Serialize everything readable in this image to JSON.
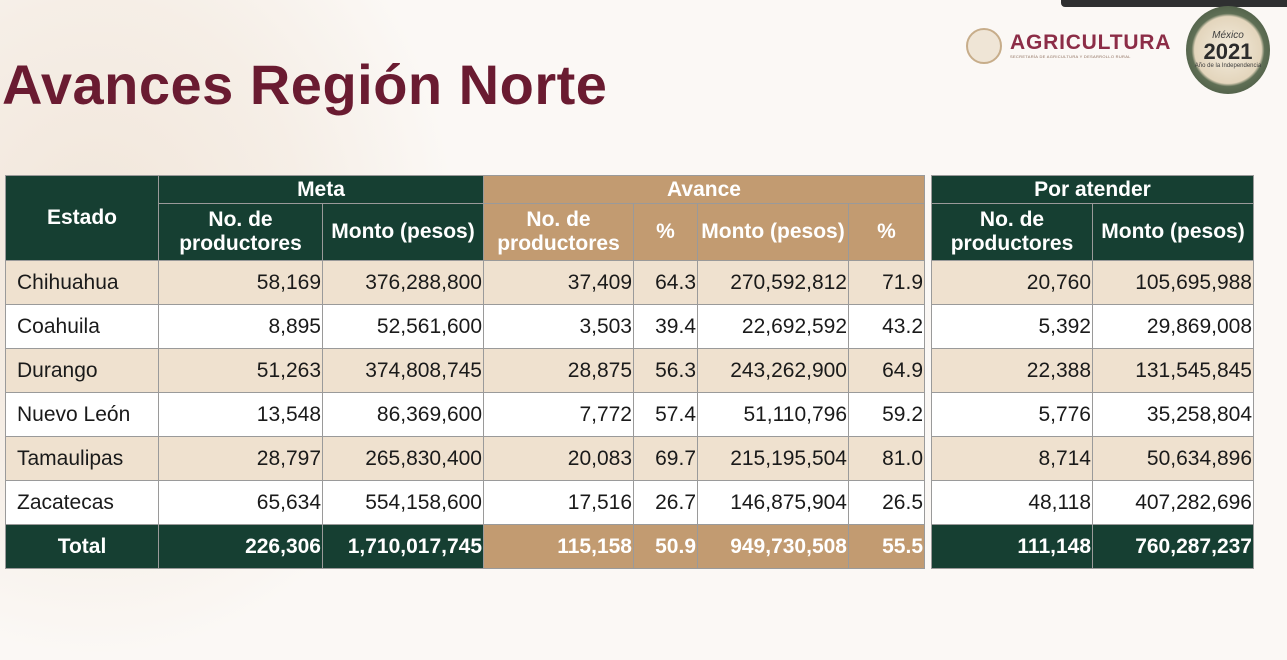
{
  "title": "Avances Región Norte",
  "logo": {
    "name": "AGRICULTURA",
    "subtitle": "SECRETARÍA DE AGRICULTURA Y DESARROLLO RURAL"
  },
  "badge": {
    "country": "México",
    "year": "2021",
    "subtitle": "Año de la Independencia"
  },
  "table": {
    "estado_header": "Estado",
    "groups": {
      "meta": "Meta",
      "avance": "Avance",
      "por_atender": "Por atender"
    },
    "subheaders": {
      "productores": "No. de productores",
      "monto": "Monto (pesos)",
      "pct": "%"
    },
    "rows": [
      {
        "estado": "Chihuahua",
        "meta_prod": "58,169",
        "meta_monto": "376,288,800",
        "av_prod": "37,409",
        "av_prod_pct": "64.3",
        "av_monto": "270,592,812",
        "av_monto_pct": "71.9",
        "pa_prod": "20,760",
        "pa_monto": "105,695,988"
      },
      {
        "estado": "Coahuila",
        "meta_prod": "8,895",
        "meta_monto": "52,561,600",
        "av_prod": "3,503",
        "av_prod_pct": "39.4",
        "av_monto": "22,692,592",
        "av_monto_pct": "43.2",
        "pa_prod": "5,392",
        "pa_monto": "29,869,008"
      },
      {
        "estado": "Durango",
        "meta_prod": "51,263",
        "meta_monto": "374,808,745",
        "av_prod": "28,875",
        "av_prod_pct": "56.3",
        "av_monto": "243,262,900",
        "av_monto_pct": "64.9",
        "pa_prod": "22,388",
        "pa_monto": "131,545,845"
      },
      {
        "estado": "Nuevo León",
        "meta_prod": "13,548",
        "meta_monto": "86,369,600",
        "av_prod": "7,772",
        "av_prod_pct": "57.4",
        "av_monto": "51,110,796",
        "av_monto_pct": "59.2",
        "pa_prod": "5,776",
        "pa_monto": "35,258,804"
      },
      {
        "estado": "Tamaulipas",
        "meta_prod": "28,797",
        "meta_monto": "265,830,400",
        "av_prod": "20,083",
        "av_prod_pct": "69.7",
        "av_monto": "215,195,504",
        "av_monto_pct": "81.0",
        "pa_prod": "8,714",
        "pa_monto": "50,634,896"
      },
      {
        "estado": "Zacatecas",
        "meta_prod": "65,634",
        "meta_monto": "554,158,600",
        "av_prod": "17,516",
        "av_prod_pct": "26.7",
        "av_monto": "146,875,904",
        "av_monto_pct": "26.5",
        "pa_prod": "48,118",
        "pa_monto": "407,282,696"
      }
    ],
    "total": {
      "estado": "Total",
      "meta_prod": "226,306",
      "meta_monto": "1,710,017,745",
      "av_prod": "115,158",
      "av_prod_pct": "50.9",
      "av_monto": "949,730,508",
      "av_monto_pct": "55.5",
      "pa_prod": "111,148",
      "pa_monto": "760,287,237"
    }
  },
  "colors": {
    "title": "#6a1b31",
    "green_header": "#163f32",
    "tan_header": "#c29b71",
    "tan_row": "#efe1cf"
  }
}
